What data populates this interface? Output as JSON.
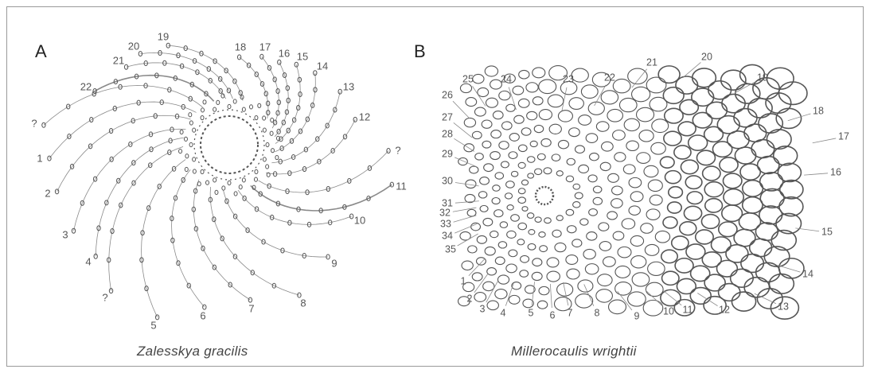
{
  "panels": [
    {
      "letter": "A",
      "caption": "Zalesskya gracilis",
      "parastichy_labels": [
        "19",
        "18",
        "17",
        "16",
        "15",
        "14",
        "13",
        "12",
        "?",
        "11",
        "10",
        "9",
        "8",
        "7",
        "6",
        "5",
        "?",
        "4",
        "3",
        "2",
        "1",
        "?",
        "22",
        "21",
        "20"
      ]
    },
    {
      "letter": "B",
      "caption": "Millerocaulis wrightii",
      "parastichy_labels": [
        "25",
        "24",
        "23",
        "22",
        "21",
        "20",
        "19",
        "18",
        "17",
        "16",
        "15",
        "14",
        "13",
        "12",
        "11",
        "10",
        "9",
        "8",
        "7",
        "6",
        "5",
        "4",
        "3",
        "2",
        "1",
        "35",
        "34",
        "33",
        "32",
        "31",
        "30",
        "29",
        "28",
        "27",
        "26"
      ]
    }
  ],
  "colors": {
    "line": "#8a8a8a",
    "dot": "#555555",
    "text": "#555555",
    "frame": "#9a9a9a"
  }
}
